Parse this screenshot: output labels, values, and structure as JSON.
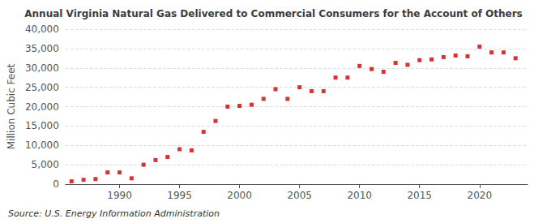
{
  "chart_data": {
    "type": "scatter",
    "title": "Annual Virginia Natural Gas Delivered to Commercial Consumers for the Account of Others",
    "ylabel": "Million Cubic Feet",
    "annotations": [
      "Source: U.S. Energy Information Administration"
    ],
    "x": [
      1986,
      1987,
      1988,
      1989,
      1990,
      1991,
      1992,
      1993,
      1994,
      1995,
      1996,
      1997,
      1998,
      1999,
      2000,
      2001,
      2002,
      2003,
      2004,
      2005,
      2006,
      2007,
      2008,
      2009,
      2010,
      2011,
      2012,
      2013,
      2014,
      2015,
      2016,
      2017,
      2018,
      2019,
      2020,
      2021,
      2022,
      2023
    ],
    "values": [
      700,
      1100,
      1300,
      3000,
      3000,
      1500,
      5000,
      6200,
      7000,
      9000,
      8700,
      13500,
      16300,
      20000,
      20200,
      20500,
      22000,
      24500,
      22000,
      25000,
      24000,
      24000,
      27500,
      27500,
      30500,
      29700,
      29000,
      31300,
      30800,
      32000,
      32200,
      32800,
      33200,
      33000,
      35500,
      34000,
      34000,
      32500
    ],
    "color": "#cc0000",
    "marker": "square",
    "xlim": [
      1985.5,
      2024
    ],
    "xticks": [
      1990,
      1995,
      2000,
      2005,
      2010,
      2015,
      2020
    ],
    "ylim": [
      0,
      40000
    ],
    "yticks": [
      0,
      {
        "value": 5000,
        "label": "5,000"
      },
      {
        "value": 10000,
        "label": "10,000"
      },
      {
        "value": 15000,
        "label": "15,000"
      },
      {
        "value": 20000,
        "label": "20,000"
      },
      {
        "value": 25000,
        "label": "25,000"
      },
      {
        "value": 30000,
        "label": "30,000"
      },
      {
        "value": 35000,
        "label": "35,000"
      },
      {
        "value": 40000,
        "label": "40,000"
      }
    ],
    "grid": true
  }
}
